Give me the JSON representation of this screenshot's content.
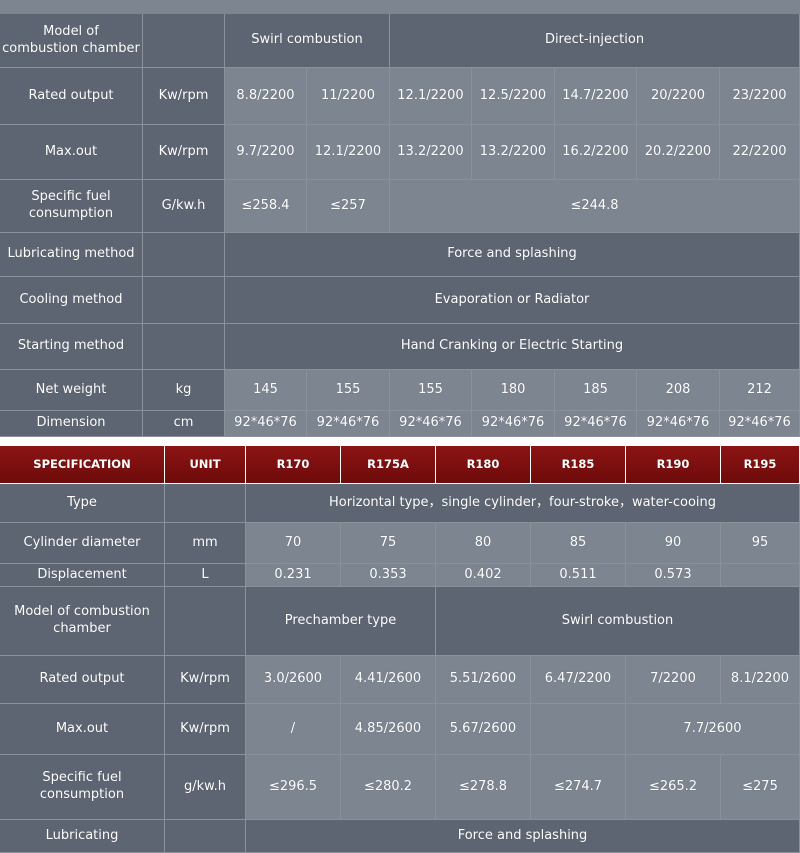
{
  "table1": {
    "rows": [
      {
        "label": "Model of\ncombustion chamber",
        "unit": "",
        "cells": [
          "Swirl combustion",
          "Direct-injection"
        ]
      },
      {
        "label": "Rated output",
        "unit": "Kw/rpm",
        "cells": [
          "8.8/2200",
          "11/2200",
          "12.1/2200",
          "12.5/2200",
          "14.7/2200",
          "20/2200",
          "23/2200"
        ]
      },
      {
        "label": "Max.out",
        "unit": "Kw/rpm",
        "cells": [
          "9.7/2200",
          "12.1/2200",
          "13.2/2200",
          "13.2/2200",
          "16.2/2200",
          "20.2/2200",
          "22/2200"
        ]
      },
      {
        "label": "Specific fuel\nconsumption",
        "unit": "G/kw.h",
        "cells": [
          "≤258.4",
          "≤257",
          "≤244.8"
        ]
      },
      {
        "label": "Lubricating method",
        "unit": "",
        "cells": [
          "Force and splashing"
        ]
      },
      {
        "label": "Cooling method",
        "unit": "",
        "cells": [
          "Evaporation or Radiator"
        ]
      },
      {
        "label": "Starting method",
        "unit": "",
        "cells": [
          "Hand Cranking or Electric Starting"
        ]
      },
      {
        "label": "Net weight",
        "unit": "kg",
        "cells": [
          "145",
          "155",
          "155",
          "180",
          "185",
          "208",
          "212"
        ]
      },
      {
        "label": "Dimension",
        "unit": "cm",
        "cells": [
          "92*46*76",
          "92*46*76",
          "92*46*76",
          "92*46*76",
          "92*46*76",
          "92*46*76",
          "92*46*76"
        ]
      }
    ]
  },
  "table2": {
    "header": [
      "SPECIFICATION",
      "UNIT",
      "R170",
      "R175A",
      "R180",
      "R185",
      "R190",
      "R195"
    ],
    "rows": [
      {
        "label": "Type",
        "unit": "",
        "cells": [
          "Horizontal type，single cylinder，four-stroke，water-cooing"
        ]
      },
      {
        "label": "Cylinder diameter",
        "unit": "mm",
        "cells": [
          "70",
          "75",
          "80",
          "85",
          "90",
          "95"
        ]
      },
      {
        "label": "Displacement",
        "unit": "L",
        "cells": [
          "0.231",
          "0.353",
          "0.402",
          "0.511",
          "0.573",
          ""
        ]
      },
      {
        "label": "Model of combustion\nchamber",
        "unit": "",
        "cells": [
          "Prechamber type",
          "Swirl combustion"
        ]
      },
      {
        "label": "Rated output",
        "unit": "Kw/rpm",
        "cells": [
          "3.0/2600",
          "4.41/2600",
          "5.51/2600",
          "6.47/2200",
          "7/2200",
          "8.1/2200"
        ]
      },
      {
        "label": "Max.out",
        "unit": "Kw/rpm",
        "cells": [
          "/",
          "4.85/2600",
          "5.67/2600",
          "",
          "7.7/2600"
        ]
      },
      {
        "label": "Specific fuel\nconsumption",
        "unit": "g/kw.h",
        "cells": [
          "≤296.5",
          "≤280.2",
          "≤278.8",
          "≤274.7",
          "≤265.2",
          "≤275"
        ]
      },
      {
        "label": "Lubricating",
        "unit": "",
        "cells": [
          "Force and splashing"
        ]
      }
    ]
  },
  "colors": {
    "header_red": "#8c1414",
    "band_dark": "#5e6572",
    "band_light": "#7d8591"
  }
}
